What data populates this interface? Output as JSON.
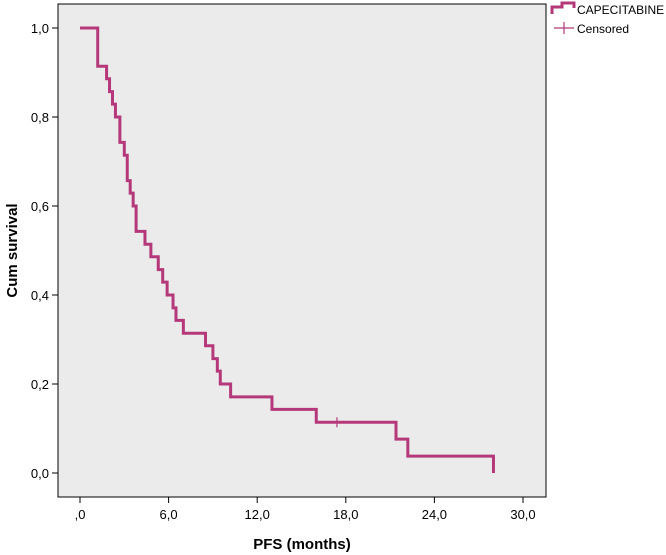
{
  "chart_data": {
    "type": "line",
    "subtype": "kaplan-meier-step",
    "xlabel": "PFS (months)",
    "ylabel": "Cum survival",
    "xlim": [
      0,
      30
    ],
    "ylim": [
      0,
      1
    ],
    "x_ticks": [
      0,
      6,
      12,
      18,
      24,
      30
    ],
    "x_tick_labels": [
      ",0",
      "6,0",
      "12,0",
      "18,0",
      "24,0",
      "30,0"
    ],
    "y_ticks": [
      0,
      0.2,
      0.4,
      0.6,
      0.8,
      1.0
    ],
    "y_tick_labels": [
      "0,0",
      "0,2",
      "0,4",
      "0,6",
      "0,8",
      "1,0"
    ],
    "grid": false,
    "legend_position": "top-right, outside plot",
    "plot_background": "#ebebeb",
    "series": [
      {
        "name": "CAPECITABINE",
        "color": "#b5397a",
        "steps": [
          [
            0,
            1.0
          ],
          [
            1.2,
            0.914
          ],
          [
            1.8,
            0.886
          ],
          [
            2.0,
            0.857
          ],
          [
            2.2,
            0.829
          ],
          [
            2.4,
            0.8
          ],
          [
            2.7,
            0.743
          ],
          [
            3.0,
            0.714
          ],
          [
            3.2,
            0.657
          ],
          [
            3.4,
            0.629
          ],
          [
            3.6,
            0.6
          ],
          [
            3.8,
            0.543
          ],
          [
            4.4,
            0.514
          ],
          [
            4.8,
            0.486
          ],
          [
            5.3,
            0.457
          ],
          [
            5.6,
            0.429
          ],
          [
            5.9,
            0.4
          ],
          [
            6.3,
            0.371
          ],
          [
            6.5,
            0.343
          ],
          [
            7.0,
            0.314
          ],
          [
            8.5,
            0.286
          ],
          [
            9.0,
            0.257
          ],
          [
            9.3,
            0.229
          ],
          [
            9.5,
            0.2
          ],
          [
            10.2,
            0.171
          ],
          [
            13.0,
            0.143
          ],
          [
            16.0,
            0.114
          ],
          [
            21.4,
            0.076
          ],
          [
            22.2,
            0.038
          ],
          [
            28.0,
            0.0
          ]
        ],
        "censored": [
          [
            17.4,
            0.114
          ]
        ]
      }
    ],
    "legend": [
      {
        "label": "CAPECITABINE",
        "symbol": "step-line"
      },
      {
        "label": "Censored",
        "symbol": "plus"
      }
    ]
  }
}
